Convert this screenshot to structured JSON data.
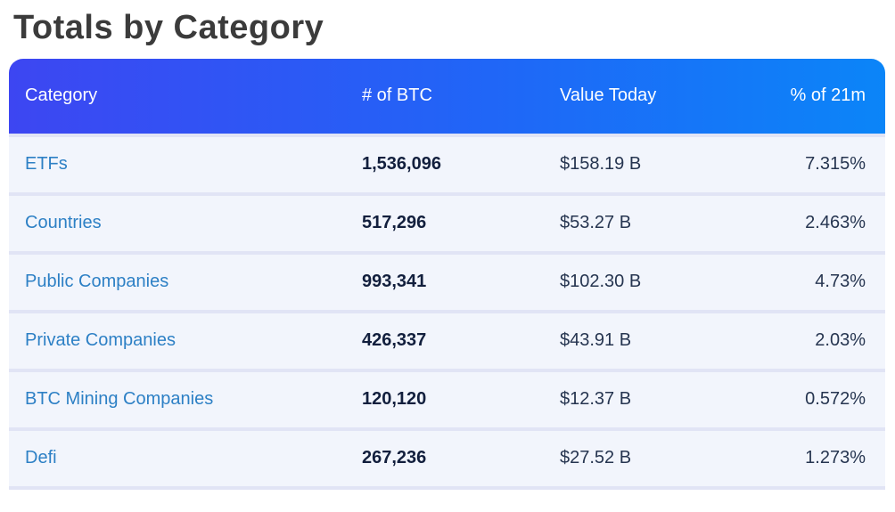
{
  "page": {
    "title": "Totals by Category"
  },
  "table": {
    "headers": {
      "category": "Category",
      "btc": "# of BTC",
      "value": "Value Today",
      "pct": "% of 21m"
    },
    "rows": [
      {
        "category": "ETFs",
        "btc": "1,536,096",
        "value": "$158.19 B",
        "pct": "7.315%"
      },
      {
        "category": "Countries",
        "btc": "517,296",
        "value": "$53.27 B",
        "pct": "2.463%"
      },
      {
        "category": "Public Companies",
        "btc": "993,341",
        "value": "$102.30 B",
        "pct": "4.73%"
      },
      {
        "category": "Private Companies",
        "btc": "426,337",
        "value": "$43.91 B",
        "pct": "2.03%"
      },
      {
        "category": "BTC Mining Companies",
        "btc": "120,120",
        "value": "$12.37 B",
        "pct": "0.572%"
      },
      {
        "category": "Defi",
        "btc": "267,236",
        "value": "$27.52 B",
        "pct": "1.273%"
      }
    ]
  },
  "colors": {
    "header_gradient_start": "#3d46f2",
    "header_gradient_end": "#0b85f8",
    "header_text": "#ffffff",
    "category_link": "#2d80c5",
    "row_background": "#f2f5fc",
    "row_divider": "#e1e4f5",
    "btc_number_text": "#121f3d",
    "value_text": "#263550",
    "title_text": "#3b3b3b",
    "page_background": "#ffffff"
  }
}
